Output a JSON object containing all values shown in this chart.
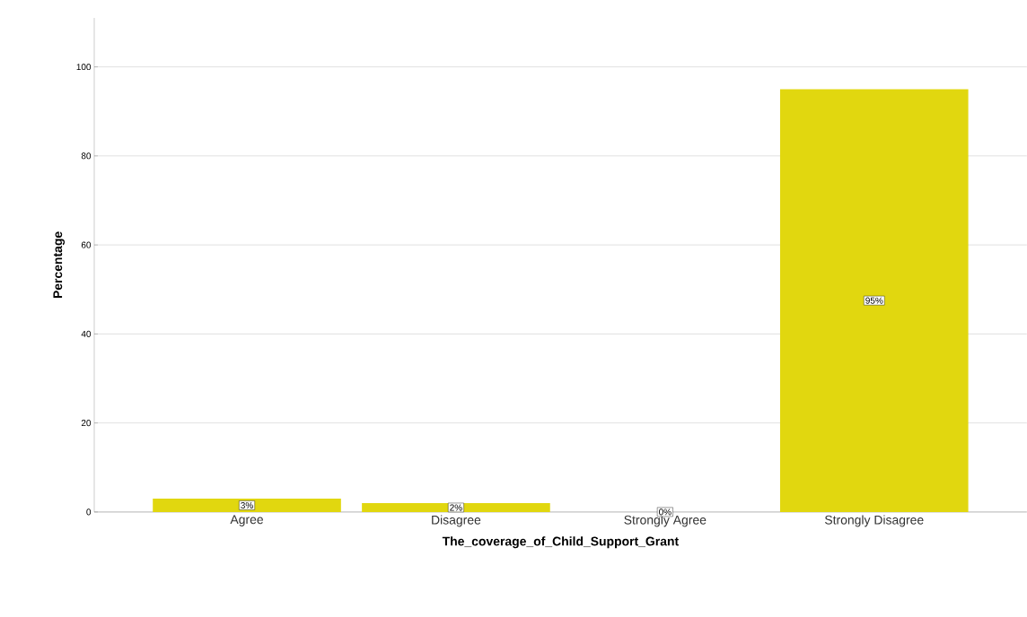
{
  "chart_data": {
    "type": "bar",
    "xlabel": "The_coverage_of_Child_Support_Grant",
    "ylabel": "Percentage",
    "categories": [
      "Agree",
      "Disagree",
      "Strongly Agree",
      "Strongly Disagree"
    ],
    "values": [
      3,
      2,
      0,
      95
    ],
    "value_labels": [
      "3%",
      "2%",
      "0%",
      "95%"
    ],
    "color": "#e1d70f",
    "ylim": [
      0,
      111
    ],
    "yticks": [
      0,
      20,
      40,
      60,
      80,
      100
    ],
    "grid": "y"
  }
}
